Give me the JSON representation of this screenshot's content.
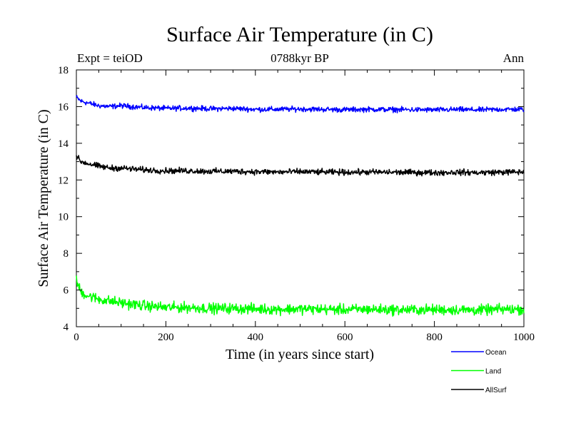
{
  "chart_data": {
    "type": "line",
    "title": "Surface Air Temperature (in C)",
    "subtitle": "0788kyr BP",
    "left_annotation": "Expt = teiOD",
    "right_annotation": "Ann",
    "xlabel": "Time (in years since start)",
    "ylabel": "Surface Air Temperature (in C)",
    "xlim": [
      0,
      1000
    ],
    "ylim": [
      4,
      18
    ],
    "x_ticks": [
      0,
      200,
      400,
      600,
      800,
      1000
    ],
    "y_ticks": [
      4,
      6,
      8,
      10,
      12,
      14,
      16,
      18
    ],
    "x_tick_labels": [
      "0",
      "200",
      "400",
      "600",
      "800",
      "1000"
    ],
    "y_tick_labels": [
      "4",
      "6",
      "8",
      "10",
      "12",
      "14",
      "16",
      "18"
    ],
    "grid": false,
    "legend_position": "bottom-right, below plot",
    "series": [
      {
        "name": "Ocean",
        "color": "#0000ff",
        "x": [
          0,
          10,
          25,
          50,
          75,
          100,
          150,
          200,
          250,
          300,
          350,
          400,
          450,
          500,
          550,
          600,
          650,
          700,
          750,
          800,
          850,
          900,
          950,
          1000
        ],
        "values": [
          16.5,
          16.3,
          16.2,
          16.05,
          16.0,
          16.05,
          15.95,
          15.9,
          15.92,
          15.88,
          15.9,
          15.85,
          15.85,
          15.87,
          15.85,
          15.83,
          15.85,
          15.84,
          15.83,
          15.82,
          15.84,
          15.82,
          15.85,
          15.85
        ]
      },
      {
        "name": "Land",
        "color": "#00ff00",
        "x": [
          0,
          10,
          25,
          50,
          75,
          100,
          150,
          200,
          250,
          300,
          350,
          400,
          450,
          500,
          550,
          600,
          650,
          700,
          750,
          800,
          850,
          900,
          950,
          1000
        ],
        "values": [
          6.5,
          5.9,
          5.7,
          5.5,
          5.4,
          5.3,
          5.15,
          5.05,
          5.05,
          5.0,
          5.0,
          4.97,
          4.95,
          4.97,
          4.95,
          4.93,
          4.95,
          4.93,
          4.92,
          4.93,
          4.92,
          4.9,
          4.95,
          4.95
        ]
      },
      {
        "name": "AllSurf",
        "color": "#000000",
        "x": [
          0,
          10,
          25,
          50,
          75,
          100,
          150,
          200,
          250,
          300,
          350,
          400,
          450,
          500,
          550,
          600,
          650,
          700,
          750,
          800,
          850,
          900,
          950,
          1000
        ],
        "values": [
          13.3,
          13.0,
          12.9,
          12.75,
          12.65,
          12.65,
          12.55,
          12.5,
          12.5,
          12.47,
          12.47,
          12.45,
          12.43,
          12.45,
          12.43,
          12.42,
          12.43,
          12.42,
          12.41,
          12.4,
          12.42,
          12.4,
          12.43,
          12.43
        ]
      }
    ]
  }
}
